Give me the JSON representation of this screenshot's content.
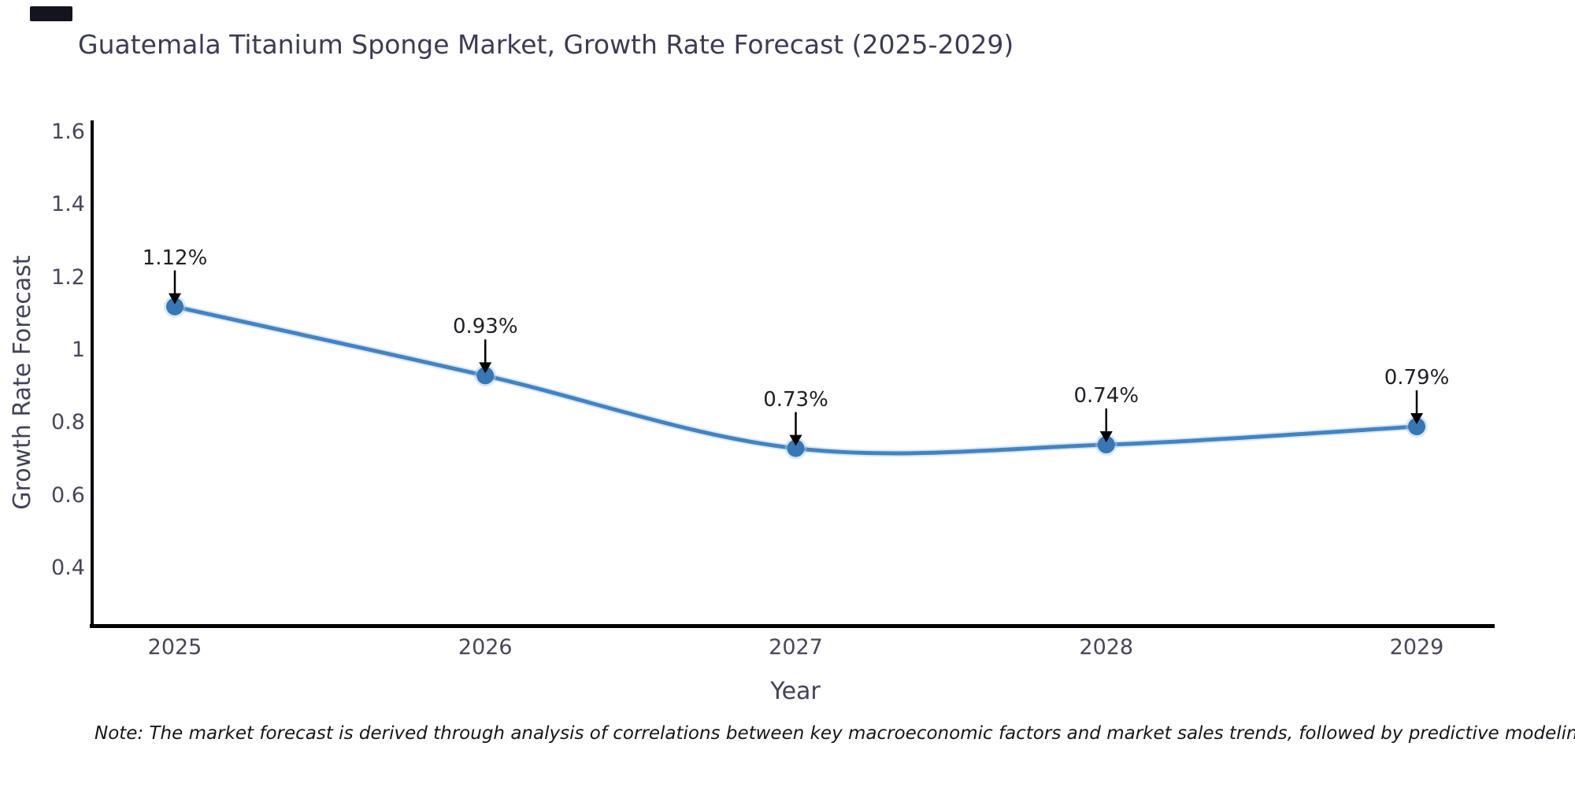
{
  "title": "Guatemala Titanium Sponge Market, Growth Rate Forecast (2025-2029)",
  "note": "Note: The market forecast is derived through analysis of correlations between key macroeconomic factors and market sales trends, followed by predictive modeling to project future sales",
  "chart_data": {
    "type": "line",
    "title": "Guatemala Titanium Sponge Market, Growth Rate Forecast (2025-2029)",
    "xlabel": "Year",
    "ylabel": "Growth Rate Forecast",
    "x": [
      2025,
      2026,
      2027,
      2028,
      2029
    ],
    "series": [
      {
        "name": "Growth Rate Forecast",
        "values": [
          1.12,
          0.93,
          0.73,
          0.74,
          0.79
        ]
      }
    ],
    "point_labels": [
      "1.12%",
      "0.93%",
      "0.73%",
      "0.74%",
      "0.79%"
    ],
    "y_ticks": [
      "1.6",
      "1.4",
      "1.2",
      "1",
      "0.8",
      "0.6",
      "0.4"
    ],
    "y_tick_values": [
      1.6,
      1.4,
      1.2,
      1.0,
      0.8,
      0.6,
      0.4
    ],
    "x_ticks": [
      "2025",
      "2026",
      "2027",
      "2028",
      "2029"
    ],
    "ylim": [
      0.23,
      1.62
    ],
    "line_shape": "spline",
    "grid": false,
    "legend": "none",
    "colors": {
      "line": "#4383c1",
      "line_halo": "#aacdea",
      "marker": "#3877b4",
      "arrow": "#000000",
      "axis": "#000000",
      "tick_label": "#47475a",
      "axis_title": "#42425a",
      "chart_title": "#3c3c55",
      "annotation": "#1f1f26",
      "corner_mark": "#14141f"
    }
  }
}
